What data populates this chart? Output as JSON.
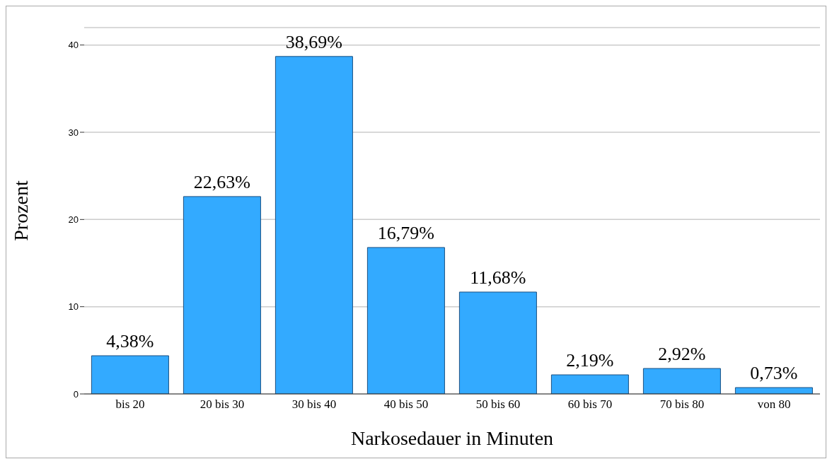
{
  "chart_data": {
    "type": "bar",
    "xlabel": "Narkosedauer in Minuten",
    "ylabel": "Prozent",
    "categories": [
      "bis 20",
      "20 bis 30",
      "30 bis 40",
      "40 bis 50",
      "50 bis 60",
      "60 bis 70",
      "70 bis 80",
      "von 80"
    ],
    "values": [
      4.38,
      22.63,
      38.69,
      16.79,
      11.68,
      2.19,
      2.92,
      0.73
    ],
    "value_labels": [
      "4,38%",
      "22,63%",
      "38,69%",
      "16,79%",
      "11,68%",
      "2,19%",
      "2,92%",
      "0,73%"
    ],
    "color": "#33aaff",
    "ylim": [
      0,
      42
    ],
    "yticks": [
      0,
      10,
      20,
      30,
      40
    ],
    "grid": "y",
    "legend": false
  }
}
